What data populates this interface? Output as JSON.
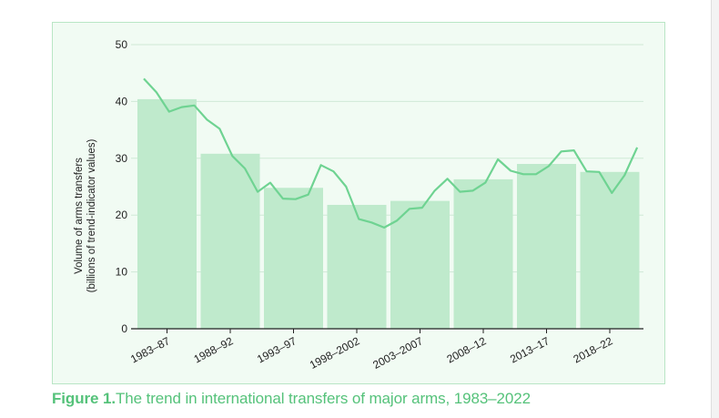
{
  "chart_data": {
    "type": "bar",
    "categories": [
      "1983–87",
      "1988–92",
      "1993–97",
      "1998–2002",
      "2003–2007",
      "2008–12",
      "2013–17",
      "2018–22"
    ],
    "values": [
      40.4,
      30.8,
      24.8,
      21.8,
      22.5,
      26.3,
      29.0,
      27.6
    ],
    "line_series": {
      "x": [
        1983,
        1984,
        1985,
        1986,
        1987,
        1988,
        1989,
        1990,
        1991,
        1992,
        1993,
        1994,
        1995,
        1996,
        1997,
        1998,
        1999,
        2000,
        2001,
        2002,
        2003,
        2004,
        2005,
        2006,
        2007,
        2008,
        2009,
        2010,
        2011,
        2012,
        2013,
        2014,
        2015,
        2016,
        2017,
        2018,
        2019,
        2020,
        2021,
        2022
      ],
      "values": [
        44.0,
        41.6,
        38.2,
        39.0,
        39.3,
        36.8,
        35.2,
        30.4,
        28.2,
        24.1,
        25.7,
        22.9,
        22.8,
        23.6,
        28.8,
        27.7,
        25.0,
        19.3,
        18.7,
        17.8,
        19.0,
        21.1,
        21.3,
        24.3,
        26.4,
        24.1,
        24.3,
        25.7,
        29.8,
        27.8,
        27.2,
        27.2,
        28.6,
        31.2,
        31.4,
        27.7,
        27.6,
        23.9,
        27.0,
        31.9
      ]
    },
    "title": "",
    "xlabel": "",
    "ylabel": "Volume of arms transfers",
    "ylabel2": "(billions of trend-indicator values)",
    "ylim": [
      0,
      50
    ],
    "yticks": [
      0,
      10,
      20,
      30,
      40,
      50
    ],
    "grid": true,
    "colors": {
      "bar": "#bfeacc",
      "line": "#6fd392",
      "grid": "#cfe9d6",
      "axis": "#222222",
      "text": "#222222"
    }
  },
  "caption": {
    "label": "Figure 1.",
    "text": "The trend in international  transfers of major arms, 1983–2022"
  }
}
